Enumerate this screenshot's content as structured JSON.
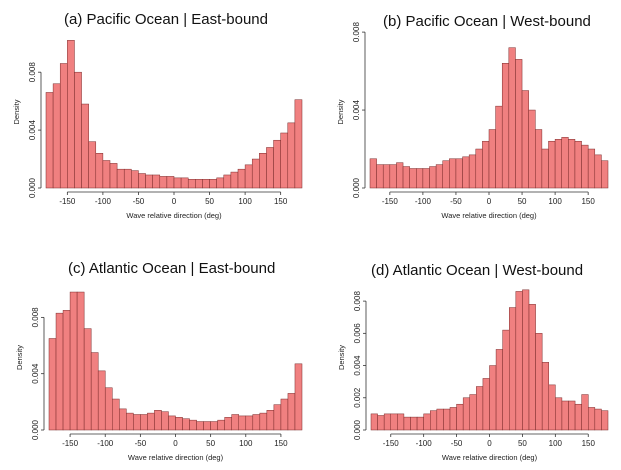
{
  "chart_data": [
    {
      "type": "bar",
      "title": "(a) Pacific Ocean | East-bound",
      "xlabel": "Wave relative direction (deg)",
      "ylabel": "Density",
      "xlim": [
        -180,
        180
      ],
      "ylim": [
        0,
        0.0105
      ],
      "xticks": [
        "-150",
        "-100",
        "-50",
        "0",
        "50",
        "100",
        "150"
      ],
      "yticks": [
        "0.000",
        "0.004",
        "0.008"
      ],
      "bin_start": -180,
      "bin_width": 10,
      "values": [
        0.0066,
        0.0072,
        0.0086,
        0.0102,
        0.008,
        0.0058,
        0.0032,
        0.0024,
        0.0019,
        0.0017,
        0.0013,
        0.0013,
        0.0012,
        0.001,
        0.0009,
        0.0009,
        0.0008,
        0.0008,
        0.0007,
        0.0007,
        0.0006,
        0.0006,
        0.0006,
        0.0006,
        0.0007,
        0.0009,
        0.0011,
        0.0013,
        0.0016,
        0.002,
        0.0024,
        0.0028,
        0.0033,
        0.0038,
        0.0045,
        0.0061
      ],
      "bar_color": "#f08080"
    },
    {
      "type": "bar",
      "title": "(b) Pacific Ocean | West-bound",
      "xlabel": "Wave relative direction (deg)",
      "ylabel": "Density",
      "xlim": [
        -180,
        180
      ],
      "ylim": [
        0,
        0.0078
      ],
      "xticks": [
        "-150",
        "-100",
        "-50",
        "0",
        "50",
        "100",
        "150"
      ],
      "yticks": [
        "0.000",
        "0.004",
        "0.008"
      ],
      "bin_start": -180,
      "bin_width": 10,
      "values": [
        0.0015,
        0.0012,
        0.0012,
        0.0012,
        0.0013,
        0.0011,
        0.001,
        0.001,
        0.001,
        0.0011,
        0.0012,
        0.0014,
        0.0015,
        0.0015,
        0.0016,
        0.0017,
        0.002,
        0.0024,
        0.003,
        0.0042,
        0.0064,
        0.0072,
        0.0066,
        0.005,
        0.004,
        0.003,
        0.002,
        0.0024,
        0.0025,
        0.0026,
        0.0025,
        0.0024,
        0.0022,
        0.002,
        0.0017,
        0.0014
      ],
      "bar_color": "#f08080"
    },
    {
      "type": "bar",
      "title": "(c) Atlantic Ocean | East-bound",
      "xlabel": "Wave relative direction (deg)",
      "ylabel": "Density",
      "xlim": [
        -180,
        180
      ],
      "ylim": [
        0,
        0.0103
      ],
      "xticks": [
        "-150",
        "-100",
        "-50",
        "0",
        "50",
        "100",
        "150"
      ],
      "yticks": [
        "0.000",
        "0.004",
        "0.008"
      ],
      "bin_start": -180,
      "bin_width": 10,
      "values": [
        0.0065,
        0.0083,
        0.0085,
        0.0098,
        0.0098,
        0.0072,
        0.0055,
        0.0042,
        0.003,
        0.0022,
        0.0015,
        0.0012,
        0.0011,
        0.0011,
        0.0012,
        0.0014,
        0.0013,
        0.001,
        0.0009,
        0.0008,
        0.0007,
        0.0006,
        0.0006,
        0.0006,
        0.0007,
        0.0009,
        0.0011,
        0.001,
        0.001,
        0.0011,
        0.0012,
        0.0014,
        0.0018,
        0.0022,
        0.0026,
        0.0047
      ],
      "bar_color": "#f08080"
    },
    {
      "type": "bar",
      "title": "(d) Atlantic Ocean | West-bound",
      "xlabel": "Wave relative direction (deg)",
      "ylabel": "Density",
      "xlim": [
        -180,
        180
      ],
      "ylim": [
        0,
        0.009
      ],
      "xticks": [
        "-150",
        "-100",
        "-50",
        "0",
        "50",
        "100",
        "150"
      ],
      "yticks": [
        "0.000",
        "0.002",
        "0.004",
        "0.006",
        "0.008"
      ],
      "bin_start": -180,
      "bin_width": 10,
      "values": [
        0.001,
        0.0009,
        0.001,
        0.001,
        0.001,
        0.0008,
        0.0008,
        0.0008,
        0.001,
        0.0012,
        0.0013,
        0.0013,
        0.0014,
        0.0016,
        0.002,
        0.0022,
        0.0027,
        0.0032,
        0.004,
        0.005,
        0.0062,
        0.0076,
        0.0086,
        0.0087,
        0.0078,
        0.006,
        0.0042,
        0.0028,
        0.002,
        0.0018,
        0.0018,
        0.0016,
        0.0022,
        0.0014,
        0.0013,
        0.0012
      ],
      "bar_color": "#f08080"
    }
  ]
}
